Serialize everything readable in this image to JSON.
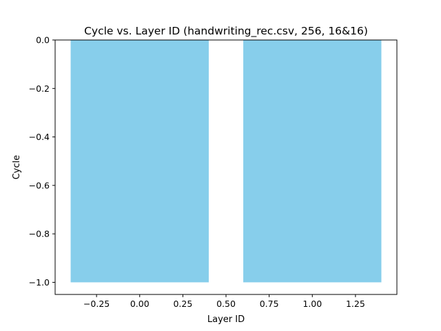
{
  "chart_data": {
    "type": "bar",
    "title": "Cycle vs. Layer ID (handwriting_rec.csv, 256, 16&16)",
    "xlabel": "Layer ID",
    "ylabel": "Cycle",
    "x": [
      0,
      1
    ],
    "values": [
      -1.0,
      -1.0
    ],
    "bar_width": 0.8,
    "bar_color": "#87ceeb",
    "xlim": [
      -0.49,
      1.49
    ],
    "ylim": [
      -1.05,
      0.0
    ],
    "xticks": [
      -0.25,
      0.0,
      0.25,
      0.5,
      0.75,
      1.0,
      1.25
    ],
    "xtick_labels": [
      "−0.25",
      "0.00",
      "0.25",
      "0.50",
      "0.75",
      "1.00",
      "1.25"
    ],
    "yticks": [
      0.0,
      -0.2,
      -0.4,
      -0.6,
      -0.8,
      -1.0
    ],
    "ytick_labels": [
      "0.0",
      "−0.2",
      "−0.4",
      "−0.6",
      "−0.8",
      "−1.0"
    ],
    "grid": false,
    "legend": "none"
  }
}
